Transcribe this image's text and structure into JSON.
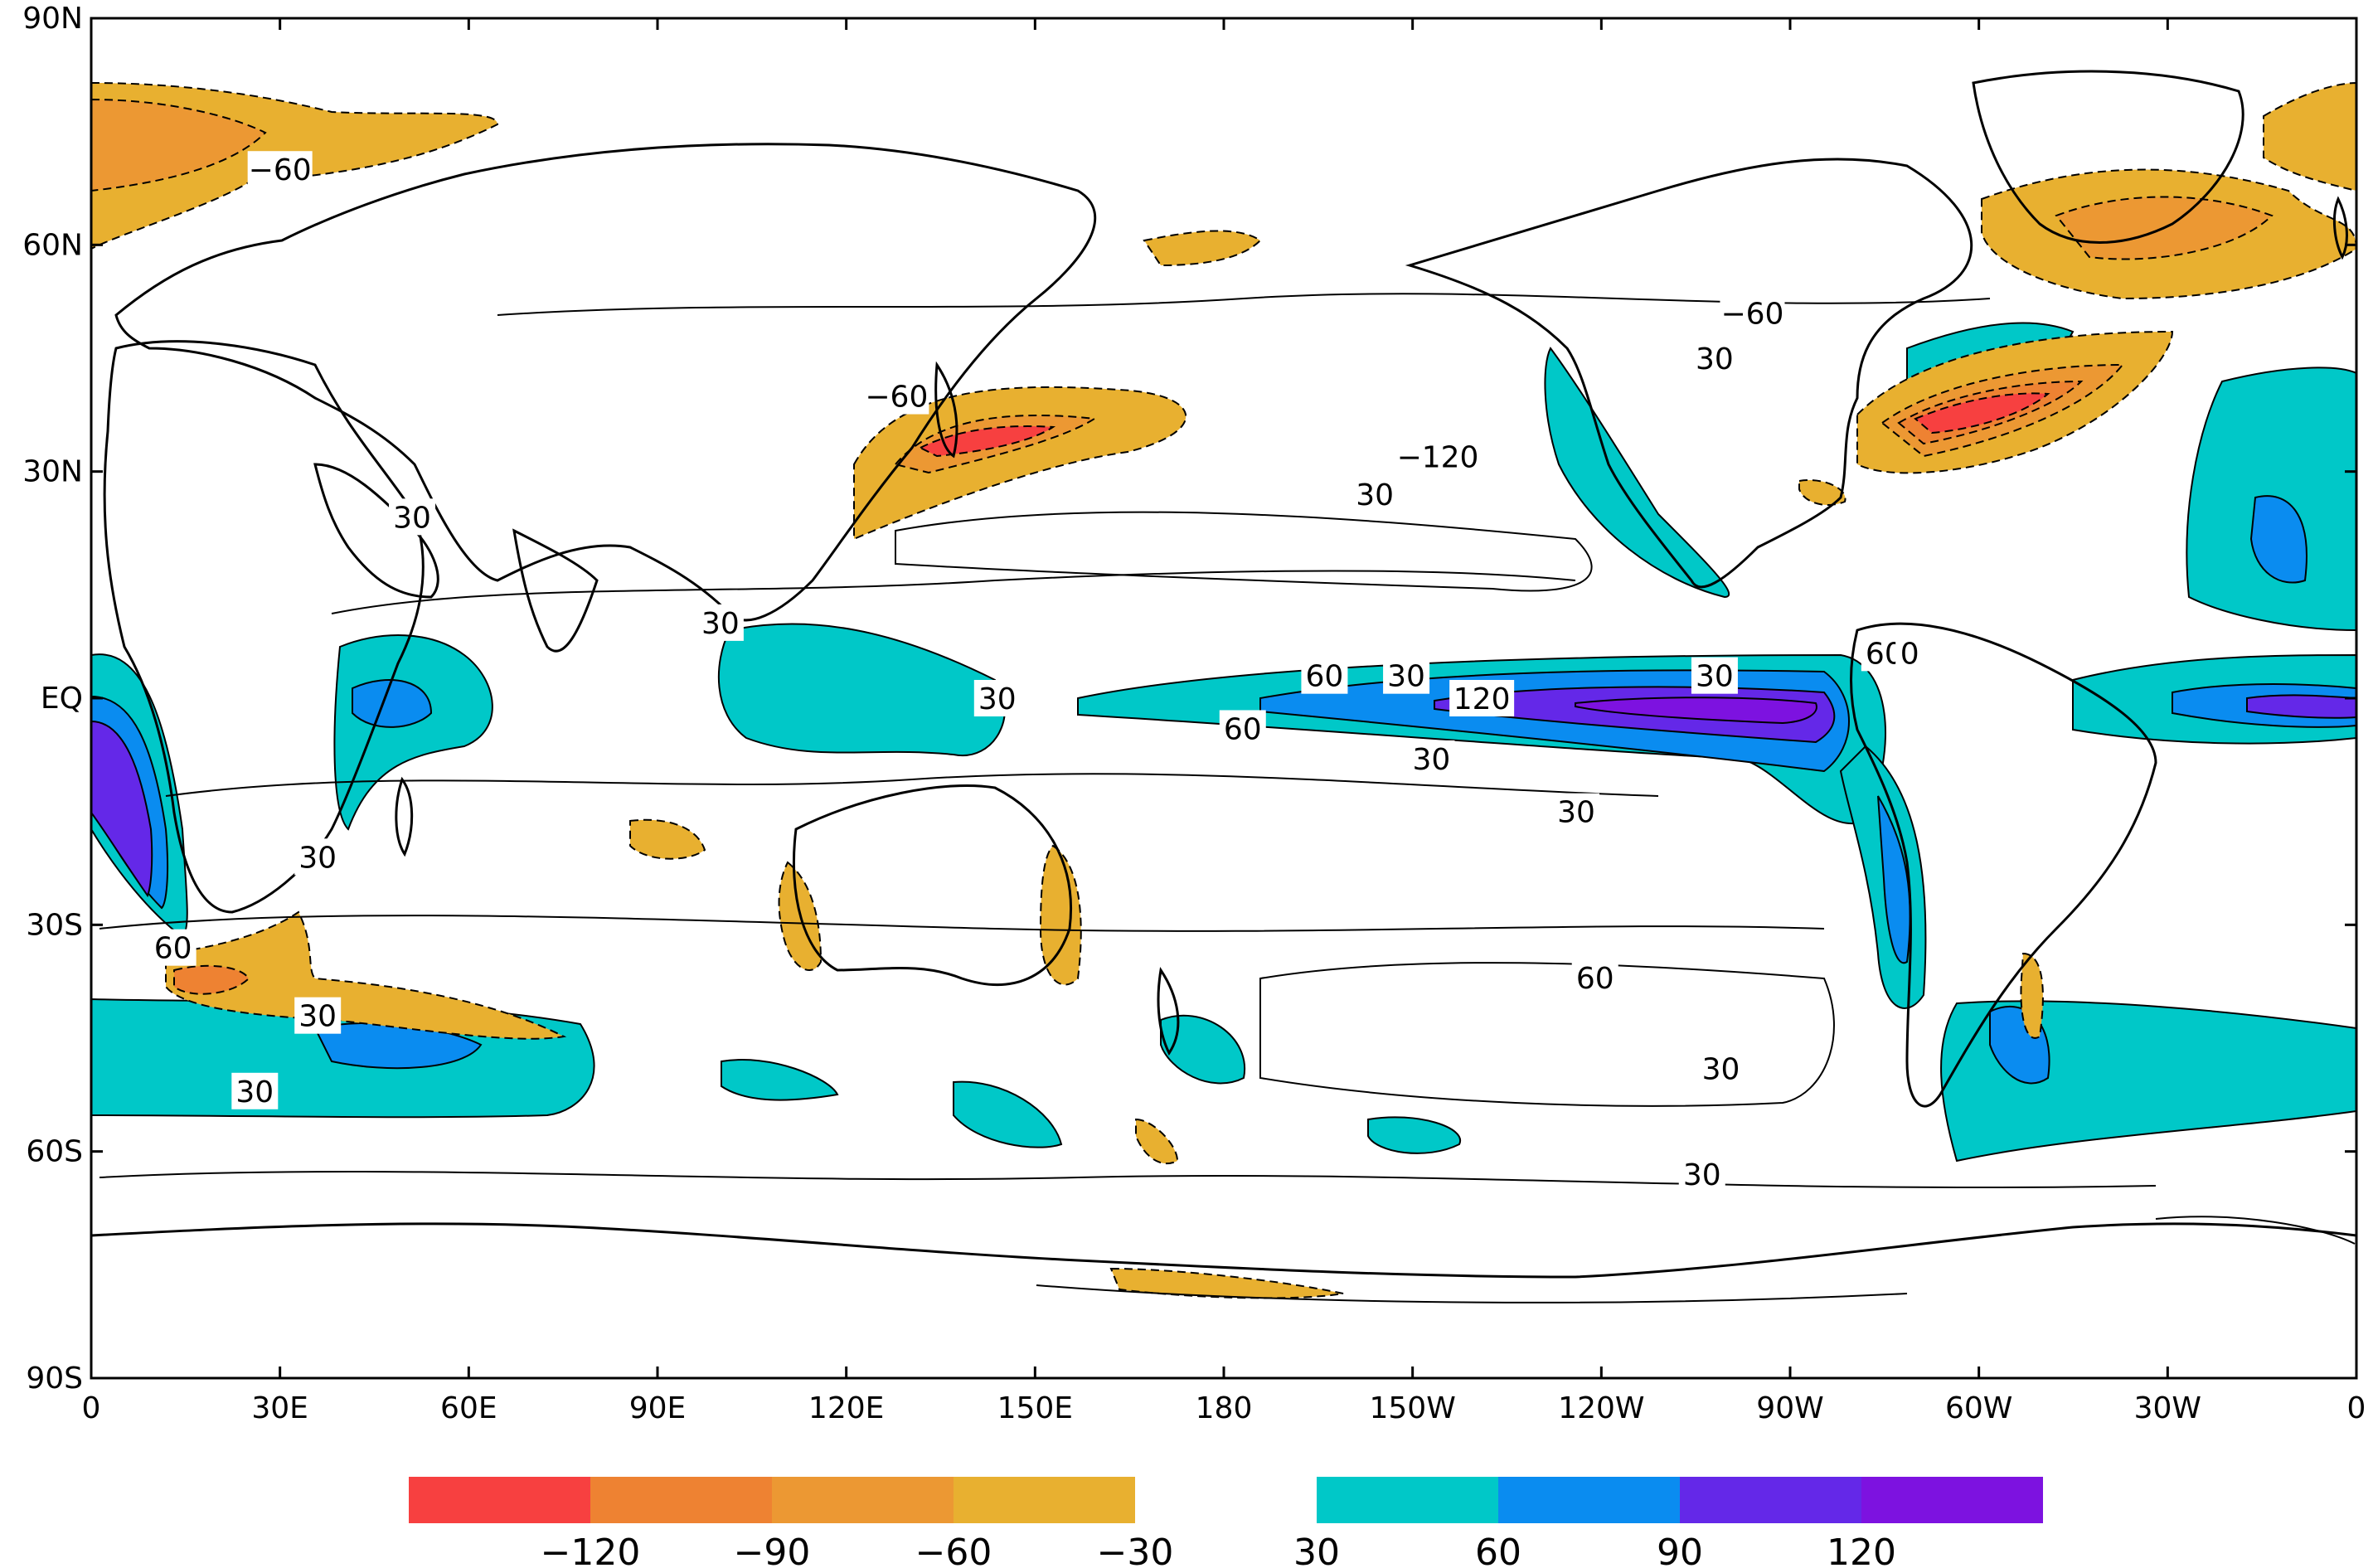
{
  "map": {
    "projection": "cylindrical equidistant",
    "lon_range": [
      0,
      360
    ],
    "lat_range": [
      -90,
      90
    ],
    "lat_ticks": [
      {
        "value": 90,
        "label": "90N"
      },
      {
        "value": 60,
        "label": "60N"
      },
      {
        "value": 30,
        "label": "30N"
      },
      {
        "value": 0,
        "label": "EQ"
      },
      {
        "value": -30,
        "label": "30S"
      },
      {
        "value": -60,
        "label": "60S"
      },
      {
        "value": -90,
        "label": "90S"
      }
    ],
    "lon_ticks": [
      {
        "value": 0,
        "label": "0"
      },
      {
        "value": 30,
        "label": "30E"
      },
      {
        "value": 60,
        "label": "60E"
      },
      {
        "value": 90,
        "label": "90E"
      },
      {
        "value": 120,
        "label": "120E"
      },
      {
        "value": 150,
        "label": "150E"
      },
      {
        "value": 180,
        "label": "180"
      },
      {
        "value": 210,
        "label": "150W"
      },
      {
        "value": 240,
        "label": "120W"
      },
      {
        "value": 270,
        "label": "90W"
      },
      {
        "value": 300,
        "label": "60W"
      },
      {
        "value": 330,
        "label": "30W"
      },
      {
        "value": 360,
        "label": "0"
      }
    ],
    "contour_labels": [
      {
        "lon": 30,
        "lat": 70,
        "text": "−60"
      },
      {
        "lon": 51,
        "lat": 24,
        "text": "30"
      },
      {
        "lon": 100,
        "lat": 10,
        "text": "30"
      },
      {
        "lon": 128,
        "lat": 40,
        "text": "−60"
      },
      {
        "lon": 144,
        "lat": 0,
        "text": "30"
      },
      {
        "lon": 196,
        "lat": 3,
        "text": "60"
      },
      {
        "lon": 209,
        "lat": 3,
        "text": "30"
      },
      {
        "lon": 221,
        "lat": 0,
        "text": "120"
      },
      {
        "lon": 183,
        "lat": -4,
        "text": "60"
      },
      {
        "lon": 213,
        "lat": -8,
        "text": "30"
      },
      {
        "lon": 204,
        "lat": 27,
        "text": "30"
      },
      {
        "lon": 214,
        "lat": 32,
        "text": "−120"
      },
      {
        "lon": 258,
        "lat": 45,
        "text": "30"
      },
      {
        "lon": 264,
        "lat": 51,
        "text": "−60"
      },
      {
        "lon": 258,
        "lat": 3,
        "text": "30"
      },
      {
        "lon": 285,
        "lat": 6,
        "text": "60"
      },
      {
        "lon": 289,
        "lat": 6,
        "text": "0"
      },
      {
        "lon": 236,
        "lat": -15,
        "text": "30"
      },
      {
        "lon": 239,
        "lat": -37,
        "text": "60"
      },
      {
        "lon": 259,
        "lat": -49,
        "text": "30"
      },
      {
        "lon": 256,
        "lat": -63,
        "text": "30"
      },
      {
        "lon": 13,
        "lat": -33,
        "text": "60"
      },
      {
        "lon": 36,
        "lat": -42,
        "text": "30"
      },
      {
        "lon": 26,
        "lat": -52,
        "text": "30"
      },
      {
        "lon": 36,
        "lat": -21,
        "text": "30"
      }
    ]
  },
  "colorbar": {
    "negative": {
      "colors": [
        "#f74040",
        "#ee8232",
        "#ec9833",
        "#e8b030"
      ],
      "labels": [
        "−120",
        "−90",
        "−60",
        "−30"
      ]
    },
    "positive": {
      "colors": [
        "#00c8c8",
        "#0a8cf0",
        "#6428e8",
        "#7d12e0"
      ],
      "labels": [
        "30",
        "60",
        "90",
        "120"
      ]
    }
  }
}
